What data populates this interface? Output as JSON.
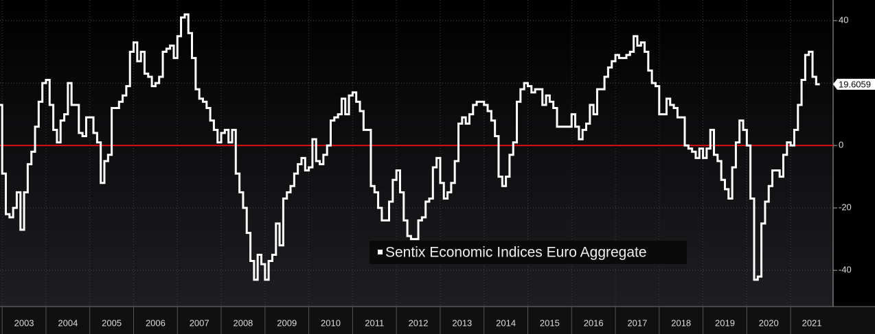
{
  "chart_data": {
    "type": "step-line",
    "series": [
      {
        "name": "Sentix Economic Indices Euro Aggregate",
        "color": "#ffffff",
        "x": [
          2002.917,
          2003.0,
          2003.083,
          2003.167,
          2003.25,
          2003.333,
          2003.417,
          2003.5,
          2003.583,
          2003.667,
          2003.75,
          2003.833,
          2003.917,
          2004.0,
          2004.083,
          2004.167,
          2004.25,
          2004.333,
          2004.417,
          2004.5,
          2004.583,
          2004.667,
          2004.75,
          2004.833,
          2004.917,
          2005.0,
          2005.083,
          2005.167,
          2005.25,
          2005.333,
          2005.417,
          2005.5,
          2005.583,
          2005.667,
          2005.75,
          2005.833,
          2005.917,
          2006.0,
          2006.083,
          2006.167,
          2006.25,
          2006.333,
          2006.417,
          2006.5,
          2006.583,
          2006.667,
          2006.75,
          2006.833,
          2006.917,
          2007.0,
          2007.083,
          2007.167,
          2007.25,
          2007.333,
          2007.417,
          2007.5,
          2007.583,
          2007.667,
          2007.75,
          2007.833,
          2007.917,
          2008.0,
          2008.083,
          2008.167,
          2008.25,
          2008.333,
          2008.417,
          2008.5,
          2008.583,
          2008.667,
          2008.75,
          2008.833,
          2008.917,
          2009.0,
          2009.083,
          2009.167,
          2009.25,
          2009.333,
          2009.417,
          2009.5,
          2009.583,
          2009.667,
          2009.75,
          2009.833,
          2009.917,
          2010.0,
          2010.083,
          2010.167,
          2010.25,
          2010.333,
          2010.417,
          2010.5,
          2010.583,
          2010.667,
          2010.75,
          2010.833,
          2010.917,
          2011.0,
          2011.083,
          2011.167,
          2011.25,
          2011.333,
          2011.417,
          2011.5,
          2011.583,
          2011.667,
          2011.75,
          2011.833,
          2011.917,
          2012.0,
          2012.083,
          2012.167,
          2012.25,
          2012.333,
          2012.417,
          2012.5,
          2012.583,
          2012.667,
          2012.75,
          2012.833,
          2012.917,
          2013.0,
          2013.083,
          2013.167,
          2013.25,
          2013.333,
          2013.417,
          2013.5,
          2013.583,
          2013.667,
          2013.75,
          2013.833,
          2013.917,
          2014.0,
          2014.083,
          2014.167,
          2014.25,
          2014.333,
          2014.417,
          2014.5,
          2014.583,
          2014.667,
          2014.75,
          2014.833,
          2014.917,
          2015.0,
          2015.083,
          2015.167,
          2015.25,
          2015.333,
          2015.417,
          2015.5,
          2015.583,
          2015.667,
          2015.75,
          2015.833,
          2015.917,
          2016.0,
          2016.083,
          2016.167,
          2016.25,
          2016.333,
          2016.417,
          2016.5,
          2016.583,
          2016.667,
          2016.75,
          2016.833,
          2016.917,
          2017.0,
          2017.083,
          2017.167,
          2017.25,
          2017.333,
          2017.417,
          2017.5,
          2017.583,
          2017.667,
          2017.75,
          2017.833,
          2017.917,
          2018.0,
          2018.083,
          2018.167,
          2018.25,
          2018.333,
          2018.417,
          2018.5,
          2018.583,
          2018.667,
          2018.75,
          2018.833,
          2018.917,
          2019.0,
          2019.083,
          2019.167,
          2019.25,
          2019.333,
          2019.417,
          2019.5,
          2019.583,
          2019.667,
          2019.75,
          2019.833,
          2019.917,
          2020.0,
          2020.083,
          2020.167,
          2020.25,
          2020.333,
          2020.417,
          2020.5,
          2020.583,
          2020.667,
          2020.75,
          2020.833,
          2020.917,
          2021.0,
          2021.083,
          2021.167,
          2021.25,
          2021.333,
          2021.417,
          2021.5,
          2021.583
        ],
        "values": [
          13,
          -9,
          -22,
          -23,
          -20,
          -15,
          -27,
          -15,
          -6,
          -2,
          6,
          14,
          20,
          21,
          13,
          5,
          1,
          8,
          10,
          20,
          13,
          13,
          4,
          3,
          9,
          9,
          4,
          1,
          -12,
          -5,
          -3,
          12,
          12,
          14,
          16,
          19,
          30,
          33,
          27,
          30,
          23,
          22,
          19,
          20,
          22,
          30,
          31,
          32,
          28,
          35,
          41,
          42,
          36,
          28,
          18,
          15,
          14,
          12,
          8,
          5,
          1,
          4,
          5,
          1,
          5,
          -9,
          -15,
          -20,
          -28,
          -37,
          -43,
          -35,
          -38,
          -43,
          -37,
          -35,
          -25,
          -32,
          -17,
          -15,
          -13,
          -9,
          -6,
          -4,
          -8,
          -7,
          2,
          -5,
          -6,
          -3,
          0,
          8,
          9,
          10,
          15,
          10,
          16,
          17,
          14,
          11,
          5,
          5,
          -13,
          -15,
          -20,
          -24,
          -24,
          -18,
          -11,
          -8,
          -15,
          -24,
          -29,
          -30,
          -30,
          -24,
          -23,
          -18,
          -17,
          -7,
          -4,
          -12,
          -17,
          -15,
          -12,
          -5,
          7,
          9,
          7,
          10,
          13,
          14,
          14,
          13,
          11,
          8,
          3,
          -10,
          -13,
          -10,
          -3,
          1,
          14,
          18,
          20,
          19,
          17,
          18,
          18,
          13,
          16,
          14,
          12,
          6,
          6,
          6,
          6,
          10,
          6,
          2,
          5,
          7,
          13,
          10,
          18,
          18,
          22,
          25,
          27,
          29,
          28,
          28,
          29,
          30,
          35,
          32,
          33,
          30,
          24,
          20,
          19,
          10,
          10,
          15,
          13,
          12,
          9,
          9,
          0,
          -1,
          -2,
          -4,
          -1,
          -4,
          -1,
          5,
          -3,
          -5,
          -11,
          -14,
          -17,
          -7,
          1,
          8,
          5,
          0,
          -17,
          -43,
          -42,
          -25,
          -18,
          -13,
          -8,
          -8,
          -10,
          -3,
          1,
          0,
          5,
          13,
          21,
          29,
          30,
          22,
          19.6059
        ]
      }
    ],
    "xlim": [
      2002.95,
      2021.97
    ],
    "xticks": [
      2003,
      2004,
      2005,
      2006,
      2007,
      2008,
      2009,
      2010,
      2011,
      2012,
      2013,
      2014,
      2015,
      2016,
      2017,
      2018,
      2019,
      2020,
      2021
    ],
    "ylim": [
      -51.6,
      46.6
    ],
    "yticks": [
      40,
      20,
      0,
      -20,
      -40
    ],
    "zero_line_color": "#e01010",
    "grid": true
  }
}
